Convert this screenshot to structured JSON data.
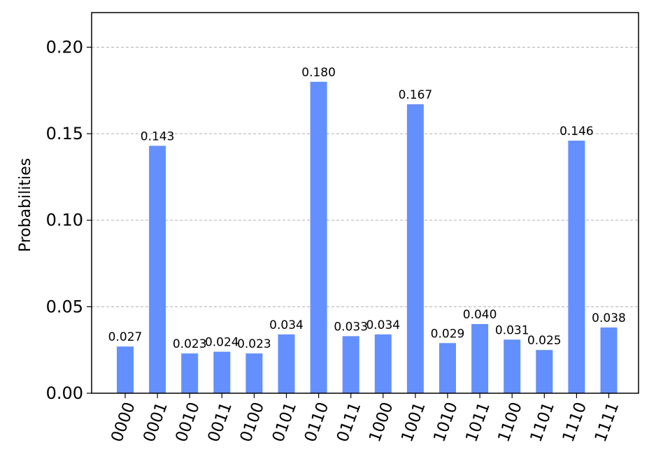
{
  "chart_data": {
    "type": "bar",
    "title": "",
    "xlabel": "",
    "ylabel": "Probabilities",
    "ylim": [
      0,
      0.22
    ],
    "yticks": [
      "0.00",
      "0.05",
      "0.10",
      "0.15",
      "0.20"
    ],
    "ytick_values": [
      0,
      0.05,
      0.1,
      0.15,
      0.2
    ],
    "categories": [
      "0000",
      "0001",
      "0010",
      "0011",
      "0100",
      "0101",
      "0110",
      "0111",
      "1000",
      "1001",
      "1010",
      "1011",
      "1100",
      "1101",
      "1110",
      "1111"
    ],
    "values": [
      0.027,
      0.143,
      0.023,
      0.024,
      0.023,
      0.034,
      0.18,
      0.033,
      0.034,
      0.167,
      0.029,
      0.04,
      0.031,
      0.025,
      0.146,
      0.038
    ],
    "value_labels": [
      "0.027",
      "0.143",
      "0.023",
      "0.024",
      "0.023",
      "0.034",
      "0.180",
      "0.033",
      "0.034",
      "0.167",
      "0.029",
      "0.040",
      "0.031",
      "0.025",
      "0.146",
      "0.038"
    ],
    "grid": "horizontal-dashed",
    "bar_color": "#648fff",
    "grid_color": "#b0b0b0"
  }
}
